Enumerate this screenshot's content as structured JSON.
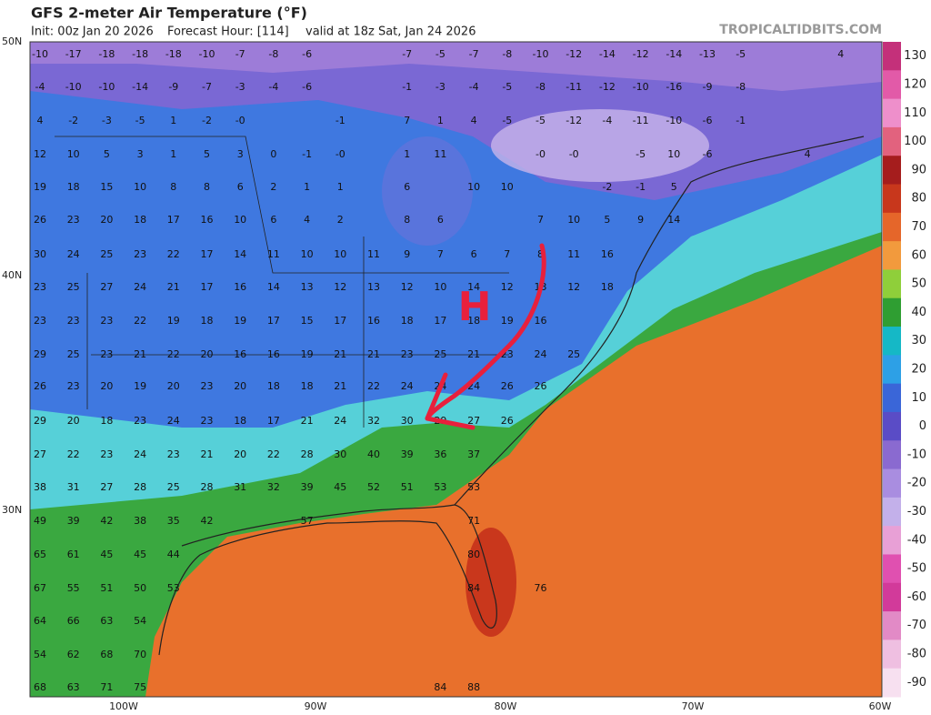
{
  "header": {
    "title": "GFS 2-meter Air Temperature (°F)",
    "init": "Init: 00z Jan 20 2026",
    "forecast_hour": "Forecast Hour: [114]",
    "valid": "valid at 18z Sat, Jan 24 2026",
    "source": "TROPICALTIDBITS.COM"
  },
  "lat_labels": [
    "50N",
    "40N",
    "30N"
  ],
  "lon_labels": [
    "100W",
    "90W",
    "80W",
    "70W",
    "60W"
  ],
  "annotation": "H",
  "colorbar": {
    "ticks": [
      130,
      120,
      110,
      100,
      90,
      80,
      70,
      60,
      50,
      40,
      30,
      20,
      10,
      0,
      -10,
      -20,
      -30,
      -40,
      -50,
      -60,
      -70,
      -80,
      -90
    ],
    "colors": [
      "#c4307a",
      "#e25aa8",
      "#ee8fcb",
      "#e2627e",
      "#a51d1d",
      "#c8371c",
      "#e5662a",
      "#f29a3d",
      "#8fcf3a",
      "#2f9e32",
      "#15b8c6",
      "#2da0e6",
      "#3a66d8",
      "#5a4cc6",
      "#8a6ad0",
      "#a98de0",
      "#c3b0ea",
      "#e8a0d6",
      "#e050b0",
      "#d23a9a",
      "#e28ac6",
      "#efbfe1",
      "#f7e0f0"
    ]
  },
  "stations": [
    [
      -10,
      -17,
      -18,
      -18,
      -18,
      -10,
      -7,
      -8,
      -6,
      null,
      null,
      -7,
      -5,
      -7,
      -8,
      -10,
      -12,
      -14,
      -12,
      -14,
      -13,
      -5,
      null,
      null,
      4
    ],
    [
      -4,
      -10,
      -10,
      -14,
      -9,
      -7,
      -3,
      -4,
      -6,
      null,
      null,
      -1,
      -3,
      -4,
      -5,
      -8,
      -11,
      -12,
      -10,
      -16,
      -9,
      -8
    ],
    [
      4,
      -2,
      -3,
      -5,
      1,
      -2,
      "-0",
      null,
      null,
      -1,
      null,
      7,
      1,
      4,
      -5,
      -5,
      -12,
      -4,
      -11,
      -10,
      -6,
      -1
    ],
    [
      12,
      10,
      5,
      3,
      1,
      5,
      3,
      0,
      -1,
      "-0",
      null,
      1,
      11,
      null,
      null,
      "-0",
      "-0",
      null,
      -5,
      10,
      -6,
      null,
      null,
      4
    ],
    [
      19,
      18,
      15,
      10,
      8,
      8,
      6,
      2,
      1,
      1,
      null,
      6,
      null,
      10,
      10,
      null,
      null,
      -2,
      -1,
      5
    ],
    [
      26,
      23,
      20,
      18,
      17,
      16,
      10,
      6,
      4,
      2,
      null,
      8,
      6,
      null,
      null,
      7,
      10,
      5,
      9,
      14
    ],
    [
      30,
      24,
      25,
      23,
      22,
      17,
      14,
      11,
      10,
      10,
      11,
      9,
      7,
      6,
      7,
      8,
      11,
      16
    ],
    [
      23,
      25,
      27,
      24,
      21,
      17,
      16,
      14,
      13,
      12,
      13,
      12,
      10,
      14,
      12,
      13,
      12,
      18
    ],
    [
      23,
      23,
      23,
      22,
      19,
      18,
      19,
      17,
      15,
      17,
      16,
      18,
      17,
      18,
      19,
      16
    ],
    [
      29,
      25,
      23,
      21,
      22,
      20,
      16,
      16,
      19,
      21,
      21,
      23,
      25,
      21,
      23,
      24,
      25
    ],
    [
      26,
      23,
      20,
      19,
      20,
      23,
      20,
      18,
      18,
      21,
      22,
      24,
      24,
      24,
      26,
      26
    ],
    [
      29,
      20,
      18,
      23,
      24,
      23,
      18,
      17,
      21,
      24,
      32,
      30,
      29,
      27,
      26
    ],
    [
      27,
      22,
      23,
      24,
      23,
      21,
      20,
      22,
      28,
      30,
      40,
      39,
      36,
      37
    ],
    [
      38,
      31,
      27,
      28,
      25,
      28,
      31,
      32,
      39,
      45,
      52,
      51,
      53,
      53
    ],
    [
      49,
      39,
      42,
      38,
      35,
      42,
      null,
      null,
      57,
      null,
      null,
      null,
      null,
      71
    ],
    [
      65,
      61,
      45,
      45,
      44,
      null,
      null,
      null,
      null,
      null,
      null,
      null,
      null,
      80
    ],
    [
      67,
      55,
      51,
      50,
      53,
      null,
      null,
      null,
      null,
      null,
      null,
      null,
      null,
      84,
      null,
      76
    ],
    [
      64,
      66,
      63,
      54
    ],
    [
      54,
      62,
      68,
      70
    ],
    [
      68,
      63,
      71,
      75,
      null,
      null,
      null,
      null,
      null,
      null,
      null,
      null,
      84,
      88
    ]
  ]
}
